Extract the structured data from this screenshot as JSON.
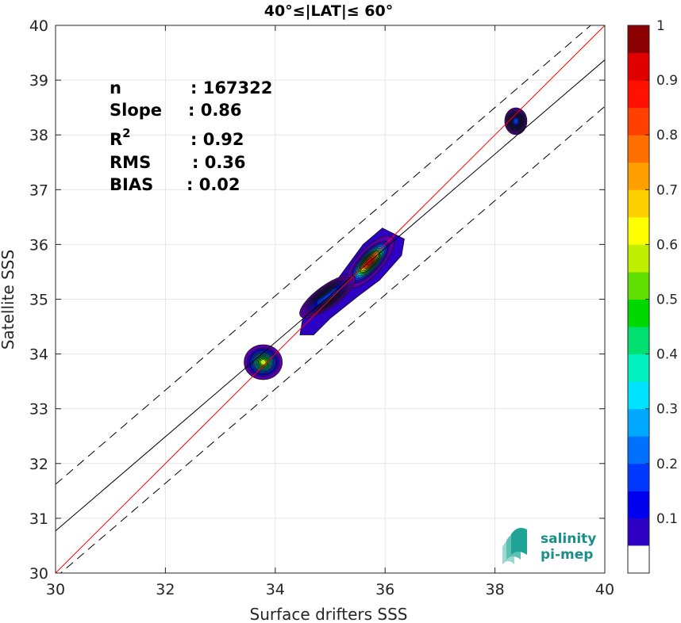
{
  "chart_data": {
    "type": "heatmap",
    "title": "40°≤|LAT|≤ 60°",
    "xlabel": "Surface drifters SSS",
    "ylabel": "Satellite SSS",
    "xlim": [
      30,
      40
    ],
    "ylim": [
      30,
      40
    ],
    "xticks": [
      "30",
      "32",
      "34",
      "36",
      "38",
      "40"
    ],
    "yticks": [
      "30",
      "31",
      "32",
      "33",
      "34",
      "35",
      "36",
      "37",
      "38",
      "39",
      "40"
    ],
    "grid": true,
    "stats": [
      {
        "label": "n",
        "sep": ": ",
        "value": "167322"
      },
      {
        "label": "Slope",
        "sep": ": ",
        "value": "0.86"
      },
      {
        "label": "R",
        "sup": "2",
        "sep": ": ",
        "value": "0.92"
      },
      {
        "label": "RMS",
        "sep": ": ",
        "value": "0.36"
      },
      {
        "label": "BIAS",
        "sep": ": ",
        "value": "0.02"
      }
    ],
    "lines": {
      "one_to_one": {
        "slope": 1,
        "intercept": 0,
        "color": "#ff0000"
      },
      "regression": {
        "slope": 0.86,
        "intercept": 4.97,
        "color": "#000000"
      },
      "upper_bound": {
        "slope": 0.86,
        "intercept": 5.82,
        "style": "dashed"
      },
      "lower_bound": {
        "slope": 0.86,
        "intercept": 4.12,
        "style": "dashed"
      }
    },
    "density_clusters": [
      {
        "name": "main",
        "x": 35.75,
        "y": 35.7,
        "peak": 0.97
      },
      {
        "name": "mid",
        "x": 33.8,
        "y": 33.85,
        "peak": 0.62
      },
      {
        "name": "high",
        "x": 38.4,
        "y": 38.25,
        "peak": 0.22
      }
    ],
    "colorbar": {
      "min": 0,
      "max": 1,
      "ticks": [
        "0.1",
        "0.2",
        "0.3",
        "0.4",
        "0.5",
        "0.6",
        "0.7",
        "0.8",
        "0.9",
        "1"
      ],
      "colors": [
        "#ffffff",
        "#5a00aa",
        "#2d00c4",
        "#0000ee",
        "#0038ff",
        "#0070ff",
        "#00a8ff",
        "#00e0ff",
        "#00f0c0",
        "#00e070",
        "#00d800",
        "#60e000",
        "#c0f000",
        "#ffff00",
        "#ffd000",
        "#ffa000",
        "#ff7000",
        "#ff4000",
        "#ff1000",
        "#e00000",
        "#8b0000"
      ]
    }
  },
  "logo": {
    "line1": "salinity",
    "line2": "pi-mep"
  }
}
